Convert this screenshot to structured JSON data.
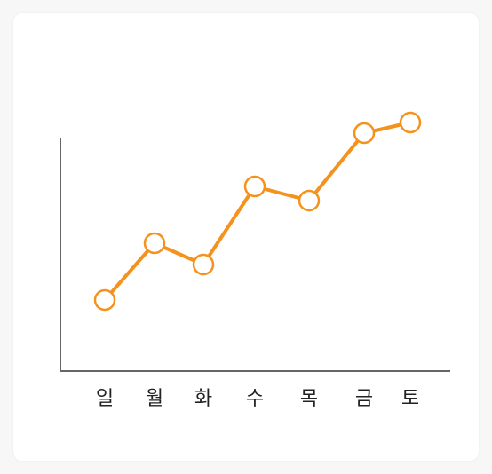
{
  "chart_data": {
    "type": "line",
    "categories": [
      "일",
      "월",
      "화",
      "수",
      "목",
      "금",
      "토"
    ],
    "values": [
      20,
      36,
      30,
      52,
      48,
      67,
      70
    ],
    "ylim": [
      0,
      100
    ],
    "grid": false,
    "axes": {
      "y_axis_line": true,
      "x_axis_line": true,
      "y_tick_labels": false
    },
    "marker": "hollow-circle",
    "colors": {
      "line": "#F5921E",
      "marker_fill": "#ffffff",
      "axis": "#666666",
      "card": "#ffffff",
      "background": "#f7f7f7"
    }
  }
}
